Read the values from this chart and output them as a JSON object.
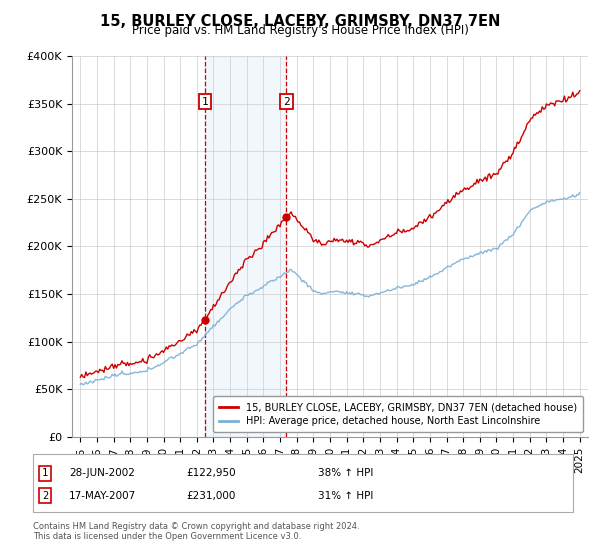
{
  "title": "15, BURLEY CLOSE, LACEBY, GRIMSBY, DN37 7EN",
  "subtitle": "Price paid vs. HM Land Registry's House Price Index (HPI)",
  "legend_line1": "15, BURLEY CLOSE, LACEBY, GRIMSBY, DN37 7EN (detached house)",
  "legend_line2": "HPI: Average price, detached house, North East Lincolnshire",
  "sale1_date": "28-JUN-2002",
  "sale1_price": "£122,950",
  "sale1_hpi": "38% ↑ HPI",
  "sale2_date": "17-MAY-2007",
  "sale2_price": "£231,000",
  "sale2_hpi": "31% ↑ HPI",
  "footer": "Contains HM Land Registry data © Crown copyright and database right 2024.\nThis data is licensed under the Open Government Licence v3.0.",
  "sale1_x": 2002.49,
  "sale1_y": 122950,
  "sale2_x": 2007.38,
  "sale2_y": 231000,
  "red_color": "#cc0000",
  "blue_color": "#7ab0d4",
  "shade_color": "#ddeeff",
  "grid_color": "#cccccc",
  "ylim": [
    0,
    400000
  ],
  "xlim": [
    1994.5,
    2025.5
  ],
  "yticks": [
    0,
    50000,
    100000,
    150000,
    200000,
    250000,
    300000,
    350000,
    400000
  ],
  "ytick_labels": [
    "£0",
    "£50K",
    "£100K",
    "£150K",
    "£200K",
    "£250K",
    "£300K",
    "£350K",
    "£400K"
  ],
  "xticks": [
    1995,
    1996,
    1997,
    1998,
    1999,
    2000,
    2001,
    2002,
    2003,
    2004,
    2005,
    2006,
    2007,
    2008,
    2009,
    2010,
    2011,
    2012,
    2013,
    2014,
    2015,
    2016,
    2017,
    2018,
    2019,
    2020,
    2021,
    2022,
    2023,
    2024,
    2025
  ],
  "figwidth": 6.0,
  "figheight": 5.6,
  "dpi": 100
}
